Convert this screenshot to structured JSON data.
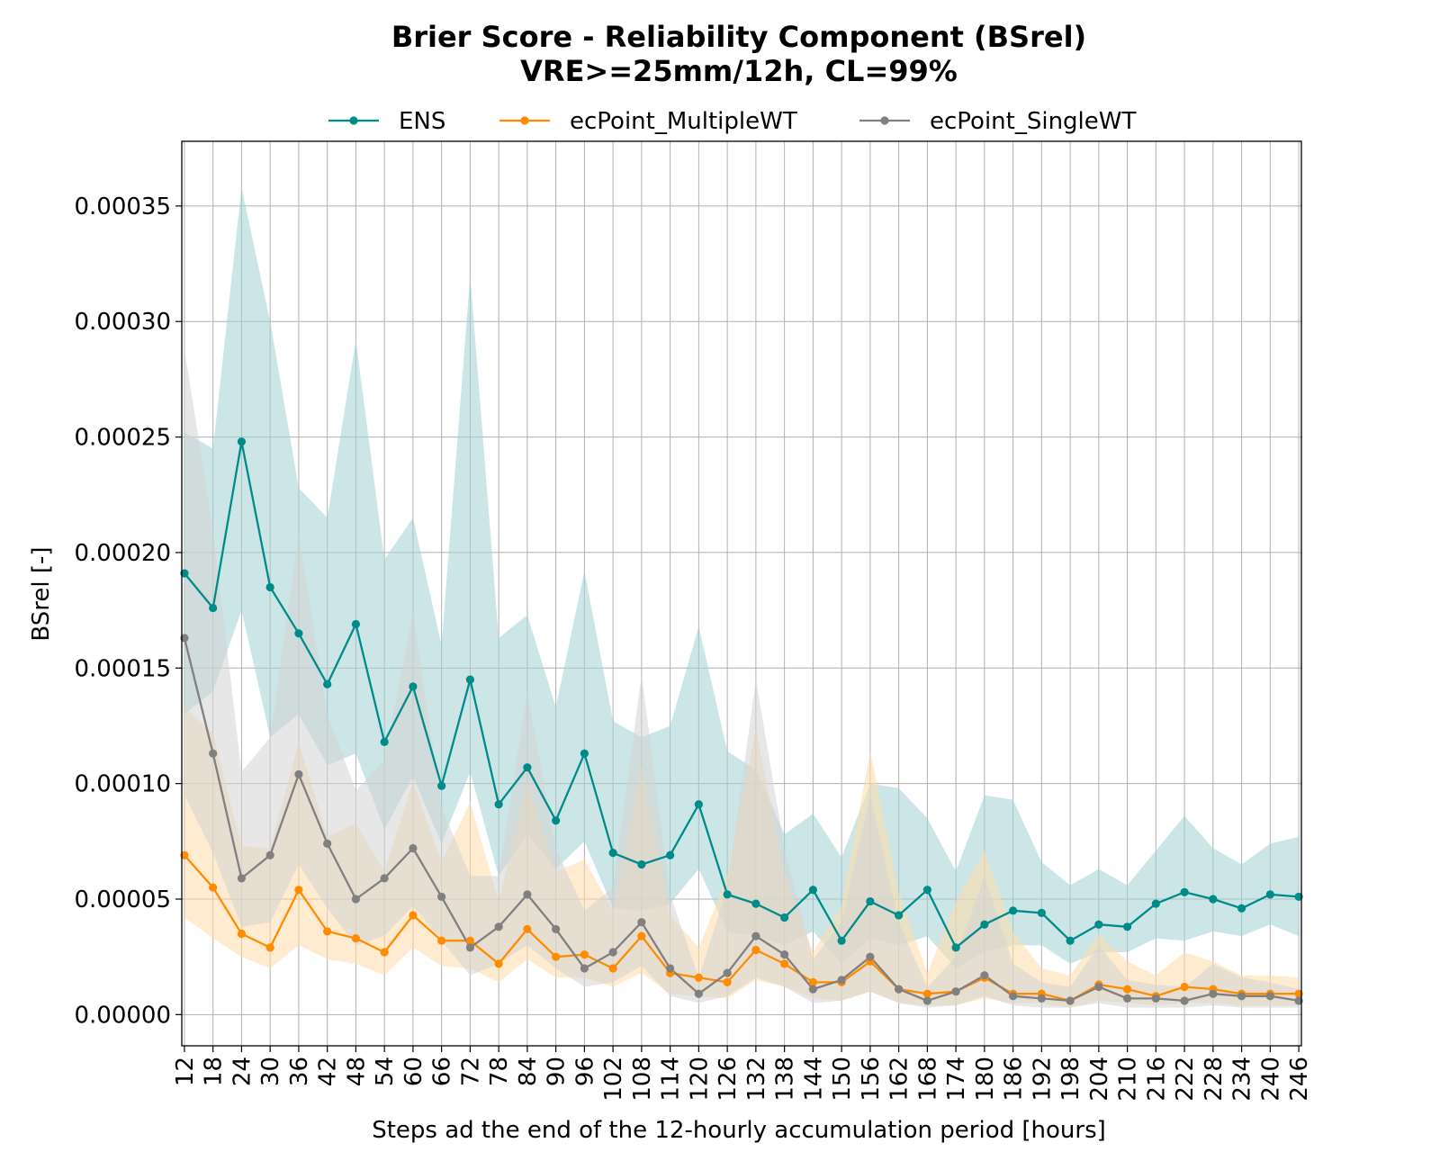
{
  "chart_data": {
    "type": "line",
    "title": "Brier Score - Reliability Component (BSrel)",
    "subtitle": "VRE>=25mm/12h, CL=99%",
    "xlabel": "Steps ad the end of the 12-hourly accumulation period [hours]",
    "ylabel": "BSrel [-]",
    "ylim": [
      -1.35e-05,
      0.000378
    ],
    "yticks": [
      "0.00000",
      "0.00005",
      "0.00010",
      "0.00015",
      "0.00020",
      "0.00025",
      "0.00030",
      "0.00035"
    ],
    "ytick_values": [
      0,
      5e-05,
      0.0001,
      0.00015,
      0.0002,
      0.00025,
      0.0003,
      0.00035
    ],
    "grid": true,
    "legend_position": "top-center",
    "x": [
      12,
      18,
      24,
      30,
      36,
      42,
      48,
      54,
      60,
      66,
      72,
      78,
      84,
      90,
      96,
      102,
      108,
      114,
      120,
      126,
      132,
      138,
      144,
      150,
      156,
      162,
      168,
      174,
      180,
      186,
      192,
      198,
      204,
      210,
      216,
      222,
      228,
      234,
      240,
      246
    ],
    "series": [
      {
        "name": "ENS",
        "color": "#008b8b",
        "band_color": "#a2d2d4",
        "values": [
          0.000191,
          0.000176,
          0.000248,
          0.000185,
          0.000165,
          0.000143,
          0.000169,
          0.000118,
          0.000142,
          9.9e-05,
          0.000145,
          9.1e-05,
          0.000107,
          8.4e-05,
          0.000113,
          7e-05,
          6.5e-05,
          6.9e-05,
          9.1e-05,
          5.2e-05,
          4.8e-05,
          4.2e-05,
          5.4e-05,
          3.2e-05,
          4.9e-05,
          4.3e-05,
          5.4e-05,
          2.9e-05,
          3.9e-05,
          4.5e-05,
          4.4e-05,
          3.2e-05,
          3.9e-05,
          3.8e-05,
          4.8e-05,
          5.3e-05,
          5e-05,
          4.6e-05,
          5.2e-05,
          5.1e-05
        ],
        "lower": [
          0.00013,
          0.00014,
          0.000175,
          0.00012,
          0.00013,
          0.000108,
          0.000113,
          8e-05,
          0.000103,
          7.4e-05,
          0.000105,
          6e-05,
          7.8e-05,
          6.3e-05,
          7.5e-05,
          4.6e-05,
          4.5e-05,
          4.8e-05,
          6.3e-05,
          3.6e-05,
          3.4e-05,
          3e-05,
          3.6e-05,
          2.2e-05,
          3.3e-05,
          3e-05,
          3.4e-05,
          2e-05,
          2.7e-05,
          3e-05,
          3e-05,
          2.2e-05,
          2.7e-05,
          2.7e-05,
          3.3e-05,
          3.2e-05,
          3.6e-05,
          3.4e-05,
          3.9e-05,
          3.4e-05
        ],
        "upper": [
          0.000252,
          0.000245,
          0.000358,
          0.0003,
          0.000228,
          0.000215,
          0.000292,
          0.000197,
          0.000215,
          0.00016,
          0.00032,
          0.000163,
          0.000173,
          0.000133,
          0.000192,
          0.000127,
          0.00012,
          0.000125,
          0.000168,
          0.000114,
          0.000106,
          7.8e-05,
          8.7e-05,
          6.8e-05,
          0.0001,
          9.8e-05,
          8.5e-05,
          6.2e-05,
          9.5e-05,
          9.3e-05,
          6.6e-05,
          5.6e-05,
          6.3e-05,
          5.6e-05,
          7.1e-05,
          8.6e-05,
          7.2e-05,
          6.5e-05,
          7.4e-05,
          7.7e-05
        ]
      },
      {
        "name": "ecPoint_MultipleWT",
        "color": "#ff8c00",
        "band_color": "#ffdcaa",
        "values": [
          6.9e-05,
          5.5e-05,
          3.5e-05,
          2.9e-05,
          5.4e-05,
          3.6e-05,
          3.3e-05,
          2.7e-05,
          4.3e-05,
          3.2e-05,
          3.2e-05,
          2.2e-05,
          3.7e-05,
          2.5e-05,
          2.6e-05,
          2e-05,
          3.4e-05,
          1.8e-05,
          1.6e-05,
          1.4e-05,
          2.8e-05,
          2.2e-05,
          1.4e-05,
          1.4e-05,
          2.3e-05,
          1.1e-05,
          9e-06,
          1e-05,
          1.6e-05,
          9e-06,
          9e-06,
          6e-06,
          1.3e-05,
          1.1e-05,
          8e-06,
          1.2e-05,
          1.1e-05,
          9e-06,
          9e-06,
          9e-06
        ],
        "lower": [
          4.2e-05,
          3.3e-05,
          2.5e-05,
          2e-05,
          3e-05,
          2.4e-05,
          2.2e-05,
          1.7e-05,
          2.9e-05,
          2.1e-05,
          2e-05,
          1.4e-05,
          2.4e-05,
          1.6e-05,
          1.6e-05,
          1.2e-05,
          1.8e-05,
          9e-06,
          8e-06,
          7e-06,
          1.5e-05,
          1.2e-05,
          7e-06,
          6e-06,
          1e-05,
          5e-06,
          4e-06,
          4e-06,
          7e-06,
          5e-06,
          5e-06,
          3e-06,
          6e-06,
          5e-06,
          4e-06,
          5e-06,
          5e-06,
          4e-06,
          4e-06,
          4e-06
        ],
        "upper": [
          0.000133,
          0.000122,
          7.3e-05,
          7.2e-05,
          0.000118,
          7.7e-05,
          8.3e-05,
          6.2e-05,
          0.000101,
          6.6e-05,
          9.2e-05,
          4.9e-05,
          0.000101,
          6.2e-05,
          6.7e-05,
          4.5e-05,
          0.000108,
          4.3e-05,
          2.9e-05,
          6e-05,
          0.000124,
          6.1e-05,
          2.7e-05,
          4.7e-05,
          0.000114,
          5.3e-05,
          1.8e-05,
          4.9e-05,
          7.1e-05,
          3.6e-05,
          2e-05,
          1.7e-05,
          3.5e-05,
          2.3e-05,
          1.7e-05,
          2.7e-05,
          2.3e-05,
          1.7e-05,
          1.7e-05,
          1.6e-05
        ]
      },
      {
        "name": "ecPoint_SingleWT",
        "color": "#808080",
        "band_color": "#d3d3d3",
        "values": [
          0.000163,
          0.000113,
          5.9e-05,
          6.9e-05,
          0.000104,
          7.4e-05,
          5e-05,
          5.9e-05,
          7.2e-05,
          5.1e-05,
          2.9e-05,
          3.8e-05,
          5.2e-05,
          3.7e-05,
          2e-05,
          2.7e-05,
          4e-05,
          2e-05,
          9e-06,
          1.8e-05,
          3.4e-05,
          2.6e-05,
          1.1e-05,
          1.5e-05,
          2.5e-05,
          1.1e-05,
          6e-06,
          1e-05,
          1.7e-05,
          8e-06,
          7e-06,
          6e-06,
          1.2e-05,
          7e-06,
          7e-06,
          6e-06,
          9e-06,
          8e-06,
          8e-06,
          6e-06
        ],
        "lower": [
          9.5e-05,
          7e-05,
          3.8e-05,
          4e-05,
          6.5e-05,
          4.6e-05,
          3e-05,
          3.4e-05,
          4.7e-05,
          3.2e-05,
          1.7e-05,
          2.2e-05,
          3e-05,
          2e-05,
          1.2e-05,
          1.4e-05,
          2.1e-05,
          8e-06,
          5e-06,
          8e-06,
          1.6e-05,
          1.2e-05,
          5e-06,
          6e-06,
          1e-05,
          5e-06,
          3e-06,
          4e-06,
          8e-06,
          4e-06,
          3e-06,
          3e-06,
          5e-06,
          3e-06,
          3e-06,
          3e-06,
          4e-06,
          3e-06,
          3e-06,
          3e-06
        ],
        "upper": [
          0.000288,
          0.00021,
          0.000105,
          0.00012,
          0.000208,
          0.00013,
          9.7e-05,
          0.00011,
          0.000175,
          9e-05,
          6e-05,
          6e-05,
          0.00014,
          7.2e-05,
          4.5e-05,
          5.5e-05,
          0.000147,
          5.2e-05,
          1.6e-05,
          5.5e-05,
          0.000145,
          7.2e-05,
          2.4e-05,
          4e-05,
          9.5e-05,
          4e-05,
          1.2e-05,
          2.5e-05,
          6e-05,
          2.2e-05,
          1.4e-05,
          1.2e-05,
          3e-05,
          1.5e-05,
          1.3e-05,
          1.2e-05,
          2.2e-05,
          1.6e-05,
          1.4e-05,
          1.1e-05
        ]
      }
    ]
  }
}
